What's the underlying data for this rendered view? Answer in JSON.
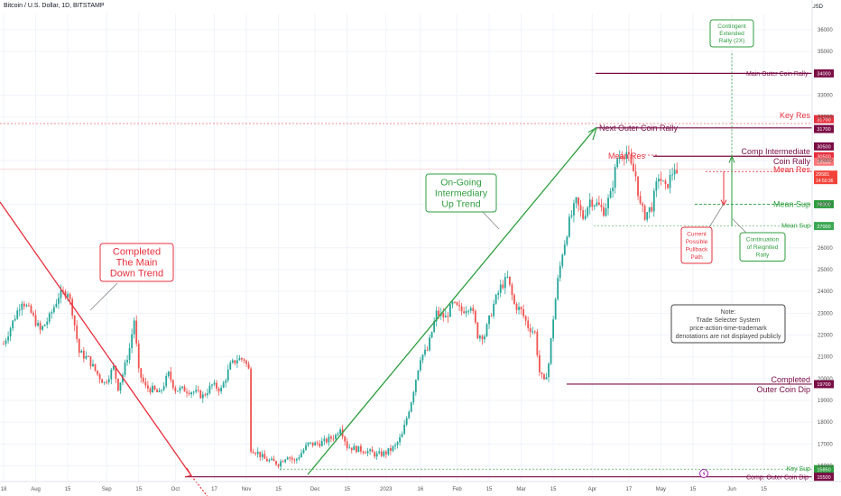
{
  "header": {
    "title": "Bitcoin / U.S. Dollar, 1D, BITSTAMP",
    "currency": "USD"
  },
  "chart_data": {
    "type": "candlestick",
    "y_ticks": [
      36000,
      35000,
      33000,
      32000,
      30000,
      28000,
      26000,
      25000,
      24000,
      23000,
      22000,
      21000,
      20000,
      19000,
      18000,
      17000,
      16000
    ],
    "ylim": [
      15000,
      36800
    ],
    "x_ticks": [
      {
        "label": "18",
        "day": 0
      },
      {
        "label": "Aug",
        "day": 14
      },
      {
        "label": "15",
        "day": 28
      },
      {
        "label": "Sep",
        "day": 45
      },
      {
        "label": "15",
        "day": 59
      },
      {
        "label": "Oct",
        "day": 75
      },
      {
        "label": "17",
        "day": 92
      },
      {
        "label": "Nov",
        "day": 106
      },
      {
        "label": "15",
        "day": 120
      },
      {
        "label": "Dec",
        "day": 136
      },
      {
        "label": "15",
        "day": 150
      },
      {
        "label": "2023",
        "day": 167
      },
      {
        "label": "16",
        "day": 182
      },
      {
        "label": "Feb",
        "day": 198
      },
      {
        "label": "15",
        "day": 212
      },
      {
        "label": "Mar",
        "day": 226
      },
      {
        "label": "15",
        "day": 240
      },
      {
        "label": "Apr",
        "day": 257
      },
      {
        "label": "17",
        "day": 273
      },
      {
        "label": "May",
        "day": 287
      },
      {
        "label": "15",
        "day": 301
      },
      {
        "label": "Jun",
        "day": 318
      },
      {
        "label": "15",
        "day": 332
      }
    ],
    "price_anchors": [
      [
        0,
        21600
      ],
      [
        4,
        22600
      ],
      [
        8,
        23600
      ],
      [
        12,
        23000
      ],
      [
        16,
        22200
      ],
      [
        20,
        22800
      ],
      [
        24,
        23800
      ],
      [
        28,
        24000
      ],
      [
        30,
        23100
      ],
      [
        33,
        21200
      ],
      [
        37,
        20900
      ],
      [
        41,
        20200
      ],
      [
        44,
        19800
      ],
      [
        48,
        20500
      ],
      [
        50,
        19600
      ],
      [
        52,
        20200
      ],
      [
        55,
        21400
      ],
      [
        57,
        22700
      ],
      [
        59,
        20300
      ],
      [
        62,
        19600
      ],
      [
        65,
        19500
      ],
      [
        68,
        19300
      ],
      [
        72,
        20200
      ],
      [
        75,
        19500
      ],
      [
        79,
        19500
      ],
      [
        83,
        19400
      ],
      [
        87,
        19200
      ],
      [
        91,
        19700
      ],
      [
        95,
        19500
      ],
      [
        99,
        20600
      ],
      [
        102,
        20900
      ],
      [
        105,
        20900
      ],
      [
        107,
        20400
      ],
      [
        108,
        16800
      ],
      [
        111,
        16600
      ],
      [
        114,
        16300
      ],
      [
        117,
        16200
      ],
      [
        120,
        16100
      ],
      [
        124,
        16500
      ],
      [
        127,
        16200
      ],
      [
        130,
        16600
      ],
      [
        133,
        17000
      ],
      [
        136,
        17000
      ],
      [
        140,
        17100
      ],
      [
        145,
        17400
      ],
      [
        147,
        17800
      ],
      [
        150,
        16900
      ],
      [
        153,
        16800
      ],
      [
        158,
        16700
      ],
      [
        163,
        16500
      ],
      [
        167,
        16600
      ],
      [
        171,
        16900
      ],
      [
        174,
        17400
      ],
      [
        178,
        19000
      ],
      [
        182,
        21000
      ],
      [
        185,
        21300
      ],
      [
        189,
        23000
      ],
      [
        193,
        22800
      ],
      [
        196,
        23400
      ],
      [
        200,
        23100
      ],
      [
        204,
        23400
      ],
      [
        207,
        22000
      ],
      [
        210,
        22000
      ],
      [
        214,
        23400
      ],
      [
        217,
        24200
      ],
      [
        220,
        24600
      ],
      [
        223,
        23400
      ],
      [
        226,
        23100
      ],
      [
        229,
        22400
      ],
      [
        232,
        22100
      ],
      [
        234,
        20300
      ],
      [
        236,
        19800
      ],
      [
        238,
        20700
      ],
      [
        240,
        22800
      ],
      [
        242,
        24500
      ],
      [
        244,
        25800
      ],
      [
        247,
        27200
      ],
      [
        250,
        28100
      ],
      [
        253,
        27400
      ],
      [
        256,
        28200
      ],
      [
        259,
        28000
      ],
      [
        262,
        27700
      ],
      [
        265,
        28400
      ],
      [
        268,
        30100
      ],
      [
        270,
        30300
      ],
      [
        272,
        30400
      ],
      [
        274,
        29700
      ],
      [
        276,
        29300
      ],
      [
        278,
        27900
      ],
      [
        280,
        27500
      ],
      [
        283,
        27900
      ],
      [
        286,
        29300
      ],
      [
        289,
        28700
      ],
      [
        291,
        29200
      ],
      [
        293,
        29700
      ],
      [
        294,
        29200
      ]
    ],
    "levels": [
      {
        "label": "Main Outer Coin Rally",
        "price": 34000,
        "badge": "34000",
        "color": "#7a0c45"
      },
      {
        "label": "Key Res",
        "price": 31700,
        "badge": "31700",
        "color": "#f2433a"
      },
      {
        "label": "Next Outer Coin Rally",
        "price": 31700,
        "badge": "31700",
        "color": "#7a0c45"
      },
      {
        "label": "Comp Intermediate Coin Rally",
        "price": 30500,
        "badge": "30500",
        "color": "#7a0c45"
      },
      {
        "label": "Mean Res",
        "price": 29500,
        "badge": "29500",
        "color": "#f2433a"
      },
      {
        "label": "Mean Sup",
        "price": 28000,
        "badge": "28000",
        "color": "#2e9e3f"
      },
      {
        "label": "Mean Sup",
        "price": 27000,
        "badge": "27000",
        "color": "#2e9e3f"
      },
      {
        "label": "Completed Outer Coin Dip",
        "price": 19700,
        "badge": "19700",
        "color": "#7a0c45"
      },
      {
        "label": "Key Sup",
        "price": 15850,
        "badge": "15850",
        "color": "#2e9e3f"
      },
      {
        "label": "Comp. Outer Coin Dip",
        "price": 15500,
        "badge": "15500",
        "color": "#7a0c45"
      }
    ],
    "current_price": {
      "value": "29581",
      "countdown": "14:50:36",
      "color": "#f2433a"
    },
    "annotations": {
      "completed_down": [
        "Completed",
        "The Main",
        "Down Trend"
      ],
      "ongoing_up": [
        "On-Going",
        "Intermediary",
        "Up Trend"
      ],
      "contingent": [
        "Contingent",
        "Extended",
        "Rally (2X)"
      ],
      "pullback": [
        "Current",
        "Possible",
        "Pullback",
        "Path"
      ],
      "continuation": [
        "Continuation",
        "of Reignited",
        "Rally"
      ],
      "note": [
        "Note:",
        "Trade Selecter System",
        "price-action-time-trademark",
        "denotations are not displayed publicly"
      ],
      "mean_res_left": "Mean Res",
      "comp_intermediate": [
        "Comp Intermediate",
        "Coin Rally"
      ],
      "completed_outer_dip": [
        "Completed",
        "Outer Coin Dip"
      ]
    },
    "colors": {
      "up": "#26a69a",
      "down": "#ef5350",
      "green": "#2e9e3f",
      "red": "#e8303d",
      "purple": "#7a0c45",
      "grid": "#f0f3fa"
    }
  }
}
